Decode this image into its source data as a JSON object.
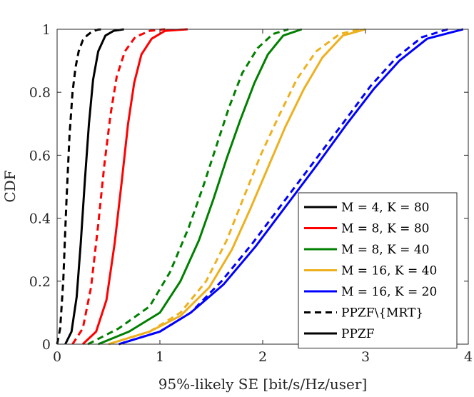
{
  "chart_data": {
    "type": "line",
    "title": "",
    "xlabel": "95%-likely SE [bit/s/Hz/user]",
    "ylabel": "CDF",
    "xlim": [
      0,
      4
    ],
    "ylim": [
      0,
      1
    ],
    "xticks": [
      0,
      1,
      2,
      3,
      4
    ],
    "yticks": [
      0,
      0.2,
      0.4,
      0.6,
      0.8,
      1
    ],
    "xtick_labels": [
      "0",
      "1",
      "2",
      "3",
      "4"
    ],
    "ytick_labels": [
      "0",
      "0.2",
      "0.4",
      "0.6",
      "0.8",
      "1"
    ],
    "grid": false,
    "legend_position": "bottom-right",
    "legend": [
      {
        "label": "M = 4, K = 80",
        "color": "#000000",
        "style": "solid"
      },
      {
        "label": "M = 8, K = 80",
        "color": "#ff0000",
        "style": "solid"
      },
      {
        "label": "M = 8, K = 40",
        "color": "#008000",
        "style": "solid"
      },
      {
        "label": "M = 16, K = 40",
        "color": "#edb120",
        "style": "solid"
      },
      {
        "label": "M = 16, K = 20",
        "color": "#0000ff",
        "style": "solid"
      },
      {
        "label": "PPZF\\{MRT}",
        "color": "#000000",
        "style": "dashed"
      },
      {
        "label": "PPZF",
        "color": "#000000",
        "style": "solid"
      }
    ],
    "series": [
      {
        "name": "M = 4, K = 80 (PPZF\\{MRT})",
        "color": "#000000",
        "style": "dashed",
        "x": [
          0,
          0.03,
          0.06,
          0.09,
          0.12,
          0.15,
          0.18,
          0.21,
          0.25,
          0.29,
          0.34,
          0.4,
          0.45
        ],
        "y": [
          0,
          0.05,
          0.2,
          0.45,
          0.66,
          0.8,
          0.88,
          0.93,
          0.965,
          0.98,
          0.993,
          0.999,
          1.0
        ]
      },
      {
        "name": "M = 4, K = 80 (PPZF)",
        "color": "#000000",
        "style": "solid",
        "x": [
          0.08,
          0.14,
          0.19,
          0.23,
          0.27,
          0.31,
          0.35,
          0.4,
          0.47,
          0.55,
          0.65
        ],
        "y": [
          0,
          0.04,
          0.15,
          0.32,
          0.52,
          0.7,
          0.84,
          0.93,
          0.98,
          0.995,
          1.0
        ]
      },
      {
        "name": "M = 8, K = 80 (PPZF\\{MRT})",
        "color": "#ff0000",
        "style": "dashed",
        "x": [
          0.15,
          0.25,
          0.33,
          0.4,
          0.46,
          0.52,
          0.58,
          0.66,
          0.76,
          0.9,
          1.05
        ],
        "y": [
          0,
          0.05,
          0.18,
          0.38,
          0.57,
          0.73,
          0.85,
          0.93,
          0.975,
          0.995,
          1.0
        ]
      },
      {
        "name": "M = 8, K = 80 (PPZF)",
        "color": "#ff0000",
        "style": "solid",
        "x": [
          0.25,
          0.38,
          0.48,
          0.56,
          0.63,
          0.69,
          0.75,
          0.82,
          0.92,
          1.05,
          1.27
        ],
        "y": [
          0,
          0.04,
          0.14,
          0.32,
          0.52,
          0.7,
          0.83,
          0.92,
          0.97,
          0.995,
          1.0
        ]
      },
      {
        "name": "M = 8, K = 40 (PPZF\\{MRT})",
        "color": "#008000",
        "style": "dashed",
        "x": [
          0.3,
          0.6,
          0.9,
          1.1,
          1.28,
          1.42,
          1.55,
          1.67,
          1.8,
          1.95,
          2.1,
          2.25
        ],
        "y": [
          0,
          0.05,
          0.12,
          0.23,
          0.37,
          0.5,
          0.63,
          0.75,
          0.86,
          0.94,
          0.985,
          1.0
        ]
      },
      {
        "name": "M = 8, K = 40 (PPZF)",
        "color": "#008000",
        "style": "solid",
        "x": [
          0.4,
          0.7,
          1.0,
          1.2,
          1.38,
          1.52,
          1.65,
          1.78,
          1.92,
          2.05,
          2.2,
          2.38
        ],
        "y": [
          0,
          0.04,
          0.1,
          0.2,
          0.33,
          0.46,
          0.59,
          0.71,
          0.83,
          0.92,
          0.98,
          1.0
        ]
      },
      {
        "name": "M = 16, K = 40 (PPZF\\{MRT})",
        "color": "#edb120",
        "style": "dashed",
        "x": [
          0.5,
          0.9,
          1.2,
          1.45,
          1.65,
          1.82,
          1.98,
          2.15,
          2.33,
          2.52,
          2.75,
          2.95
        ],
        "y": [
          0,
          0.04,
          0.1,
          0.2,
          0.33,
          0.47,
          0.6,
          0.72,
          0.84,
          0.93,
          0.985,
          1.0
        ]
      },
      {
        "name": "M = 16, K = 40 (PPZF)",
        "color": "#edb120",
        "style": "solid",
        "x": [
          0.5,
          0.9,
          1.2,
          1.48,
          1.7,
          1.88,
          2.05,
          2.22,
          2.4,
          2.58,
          2.78,
          3.0
        ],
        "y": [
          0,
          0.04,
          0.09,
          0.18,
          0.3,
          0.43,
          0.56,
          0.69,
          0.81,
          0.91,
          0.98,
          1.0
        ]
      },
      {
        "name": "M = 16, K = 20 (PPZF\\{MRT})",
        "color": "#0000ff",
        "style": "dashed",
        "x": [
          0.6,
          1.0,
          1.3,
          1.6,
          1.9,
          2.2,
          2.5,
          2.8,
          3.05,
          3.3,
          3.55,
          3.8
        ],
        "y": [
          0,
          0.04,
          0.1,
          0.2,
          0.32,
          0.45,
          0.58,
          0.71,
          0.82,
          0.91,
          0.975,
          1.0
        ]
      },
      {
        "name": "M = 16, K = 20 (PPZF)",
        "color": "#0000ff",
        "style": "solid",
        "x": [
          0.6,
          1.0,
          1.3,
          1.62,
          1.93,
          2.23,
          2.53,
          2.82,
          3.08,
          3.33,
          3.6,
          3.95
        ],
        "y": [
          0,
          0.04,
          0.1,
          0.19,
          0.31,
          0.44,
          0.57,
          0.7,
          0.81,
          0.9,
          0.97,
          1.0
        ]
      }
    ]
  }
}
